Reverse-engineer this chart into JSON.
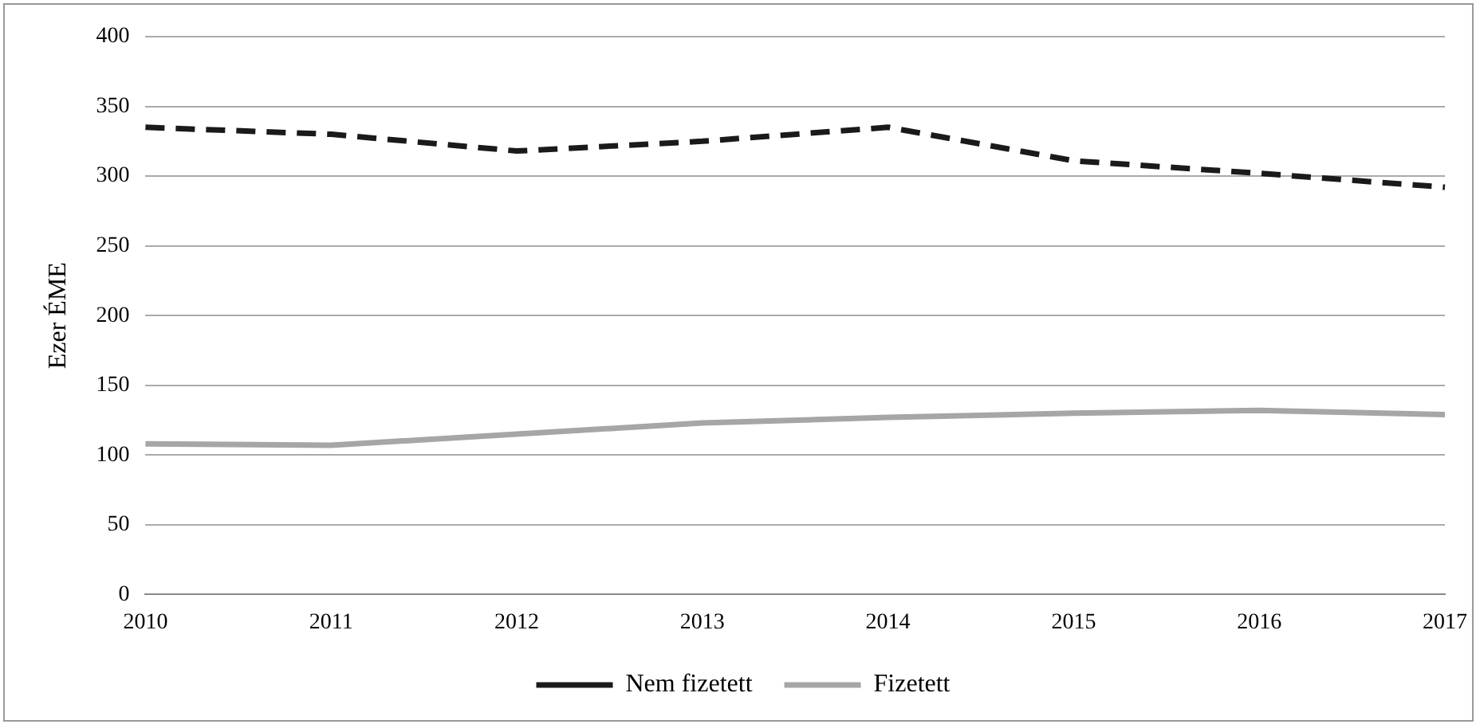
{
  "chart_data": {
    "type": "line",
    "ylabel": "Ezer ÉME",
    "categories": [
      "2010",
      "2011",
      "2012",
      "2013",
      "2014",
      "2015",
      "2016",
      "2017"
    ],
    "series": [
      {
        "name": "Nem fizetett",
        "color": "#1a1a1a",
        "line_style": "dashed",
        "values": [
          335,
          330,
          318,
          325,
          335,
          311,
          302,
          292
        ]
      },
      {
        "name": "Fizetett",
        "color": "#a6a6a6",
        "line_style": "solid",
        "values": [
          108,
          107,
          115,
          123,
          127,
          130,
          132,
          129
        ]
      }
    ],
    "ylim": [
      0,
      400
    ],
    "yticks": [
      0,
      50,
      100,
      150,
      200,
      250,
      300,
      350,
      400
    ],
    "grid": "y",
    "legend": "bottom",
    "marker": "none"
  }
}
